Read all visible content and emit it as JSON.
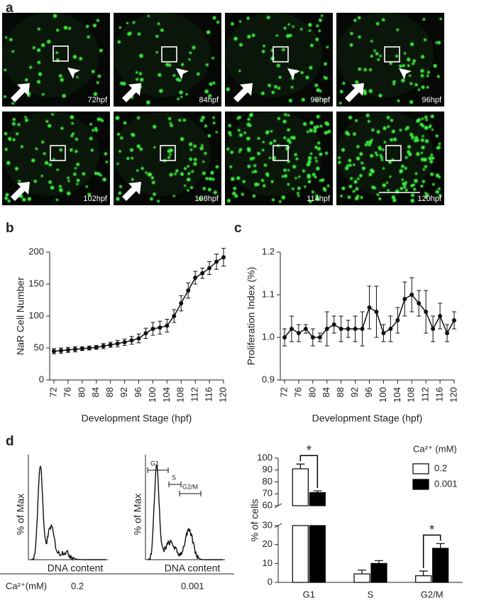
{
  "panel_labels": [
    "a",
    "b",
    "c",
    "d"
  ],
  "panel_a": {
    "images": [
      "72hpf",
      "84hpf",
      "90hpf",
      "96hpf",
      "102hpf",
      "108hpf",
      "114hpf",
      "120hpf"
    ]
  },
  "flow": {
    "y_label": "% of Max",
    "x_label": "DNA content",
    "gates": [
      "G1",
      "S",
      "G2/M"
    ],
    "condition_label": "Ca²⁺(mM)",
    "conditions": [
      "0.2",
      "0.001"
    ]
  },
  "chart_data": [
    {
      "type": "line",
      "x_label": "Development Stage (hpf)",
      "y_label": "NaR Cell Number",
      "x": [
        72,
        74,
        76,
        78,
        80,
        82,
        84,
        86,
        88,
        90,
        92,
        94,
        96,
        98,
        100,
        102,
        104,
        106,
        108,
        110,
        112,
        114,
        116,
        118,
        120
      ],
      "values": [
        45,
        46,
        47,
        48,
        49,
        50,
        51,
        53,
        55,
        57,
        59,
        62,
        65,
        73,
        80,
        82,
        85,
        100,
        120,
        140,
        160,
        167,
        175,
        185,
        192
      ],
      "errors": [
        4,
        4,
        4,
        4,
        3,
        3,
        3,
        4,
        4,
        5,
        5,
        6,
        7,
        8,
        10,
        10,
        10,
        10,
        12,
        12,
        10,
        8,
        10,
        12,
        14
      ],
      "color": "#111",
      "xlim": [
        72,
        120
      ],
      "xticks": [
        72,
        76,
        80,
        84,
        88,
        92,
        96,
        100,
        104,
        108,
        112,
        116,
        120
      ],
      "ylim": [
        0,
        200
      ],
      "yticks": [
        0,
        50,
        100,
        150,
        200
      ]
    },
    {
      "type": "line",
      "x_label": "Development Stage (hpf)",
      "y_label": "Proliferation Index (%)",
      "x": [
        72,
        74,
        76,
        78,
        80,
        82,
        84,
        86,
        88,
        90,
        92,
        94,
        96,
        98,
        100,
        102,
        104,
        106,
        108,
        110,
        112,
        114,
        116,
        118,
        120
      ],
      "values": [
        1.0,
        1.02,
        1.01,
        1.02,
        1.0,
        1.0,
        1.02,
        1.03,
        1.02,
        1.02,
        1.02,
        1.02,
        1.07,
        1.06,
        1.01,
        1.02,
        1.04,
        1.09,
        1.1,
        1.08,
        1.06,
        1.02,
        1.05,
        1.01,
        1.04
      ],
      "errors": [
        0.02,
        0.03,
        0.02,
        0.01,
        0.02,
        0.01,
        0.04,
        0.02,
        0.03,
        0.02,
        0.03,
        0.04,
        0.05,
        0.06,
        0.02,
        0.03,
        0.03,
        0.04,
        0.04,
        0.03,
        0.05,
        0.03,
        0.03,
        0.02,
        0.02
      ],
      "color": "#111",
      "xlim": [
        72,
        120
      ],
      "xticks": [
        72,
        76,
        80,
        84,
        88,
        92,
        96,
        100,
        104,
        108,
        112,
        116,
        120
      ],
      "ylim": [
        0.9,
        1.2
      ],
      "yticks": [
        0.9,
        {
          "value": 1,
          "label": "1.0"
        },
        1.1,
        1.2
      ]
    },
    {
      "type": "bar",
      "y_label": "% of cells",
      "legend_title": "Ca²⁺ (mM)",
      "categories": [
        "G1",
        "S",
        "G2/M"
      ],
      "series": [
        {
          "name": "0.2",
          "color": "#ffffff",
          "values": [
            91,
            4.5,
            3.5
          ],
          "errors": [
            4,
            2,
            2.5
          ]
        },
        {
          "name": "0.001",
          "color": "#000000",
          "values": [
            71,
            10,
            18
          ],
          "errors": [
            1.5,
            1.5,
            2.5
          ]
        }
      ],
      "ylim": [
        0,
        100
      ],
      "ybreak": [
        30,
        60
      ],
      "yticks": [
        0,
        10,
        20,
        30,
        60,
        70,
        80,
        90,
        100
      ],
      "annotations": [
        "*",
        "*"
      ]
    }
  ]
}
